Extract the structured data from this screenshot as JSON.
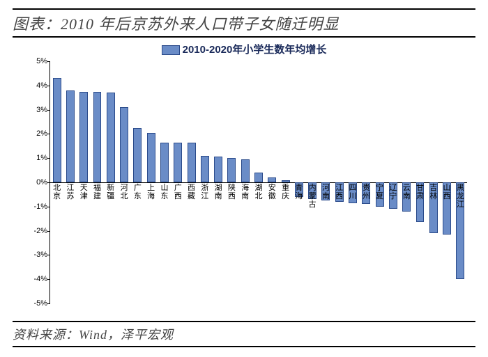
{
  "title": "图表：2010 年后京苏外来人口带子女随迁明显",
  "source": "资料来源：Wind，泽平宏观",
  "chart": {
    "type": "bar",
    "legend_label": "2010-2020年小学生数年均增长",
    "legend_color": "#6a8cc7",
    "bar_fill": "#6a8cc7",
    "bar_border": "#2a4a8a",
    "axis_color": "#000000",
    "background": "#ffffff",
    "y_min": -5,
    "y_max": 5,
    "y_tick_step": 1,
    "y_tick_suffix": "%",
    "label_fontsize": 11,
    "bar_width_ratio": 0.62,
    "categories": [
      "北京",
      "江苏",
      "天津",
      "福建",
      "新疆",
      "河北",
      "广东",
      "上海",
      "山东",
      "广西",
      "西藏",
      "浙江",
      "湖南",
      "陕西",
      "海南",
      "湖北",
      "安徽",
      "重庆",
      "青海",
      "内蒙古",
      "河南",
      "江西",
      "四川",
      "贵州",
      "宁夏",
      "辽宁",
      "云南",
      "甘肃",
      "吉林",
      "山西",
      "黑龙江"
    ],
    "values": [
      4.3,
      3.8,
      3.75,
      3.75,
      3.7,
      3.1,
      2.25,
      2.05,
      1.65,
      1.65,
      1.65,
      1.1,
      1.05,
      1.0,
      0.95,
      0.4,
      0.2,
      0.1,
      -0.6,
      -0.7,
      -0.75,
      -0.8,
      -0.85,
      -0.9,
      -1.0,
      -1.1,
      -1.2,
      -1.65,
      -2.1,
      -2.15,
      -4.0
    ]
  }
}
